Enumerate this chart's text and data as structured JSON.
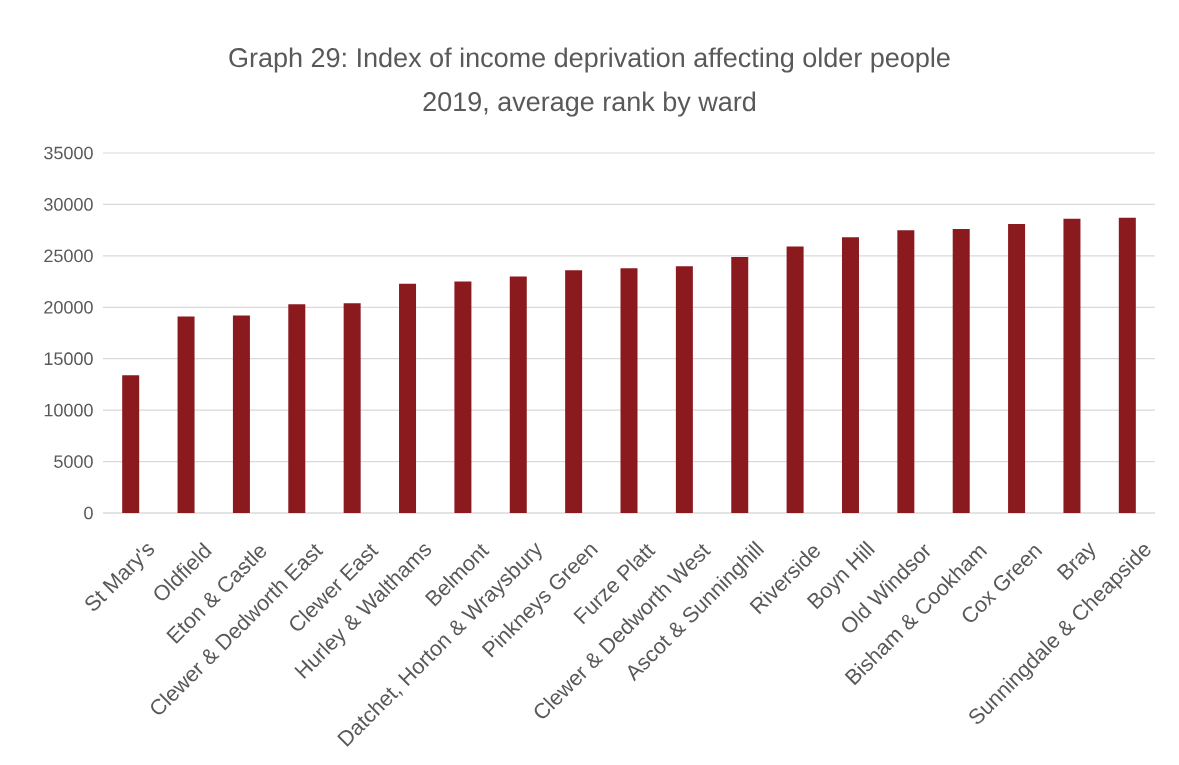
{
  "chart_data": {
    "type": "bar",
    "title": "Graph 29: Index of income deprivation affecting older people 2019, average rank by ward",
    "categories": [
      "St Mary's",
      "Oldfield",
      "Eton & Castle",
      "Clewer & Dedworth East",
      "Clewer East",
      "Hurley & Walthams",
      "Belmont",
      "Datchet, Horton & Wraysbury",
      "Pinkneys Green",
      "Furze Platt",
      "Clewer & Dedworth West",
      "Ascot & Sunninghill",
      "Riverside",
      "Boyn Hill",
      "Old Windsor",
      "Bisham & Cookham",
      "Cox Green",
      "Bray",
      "Sunningdale & Cheapside"
    ],
    "values": [
      13400,
      19100,
      19200,
      20300,
      20400,
      22300,
      22500,
      23000,
      23600,
      23800,
      24000,
      24900,
      25900,
      26800,
      27500,
      27600,
      28100,
      28600,
      28700
    ],
    "color": "#8b1a1f",
    "ylim": [
      0,
      35000
    ],
    "yticks": [
      0,
      5000,
      10000,
      15000,
      20000,
      25000,
      30000,
      35000
    ],
    "grid": "y"
  }
}
